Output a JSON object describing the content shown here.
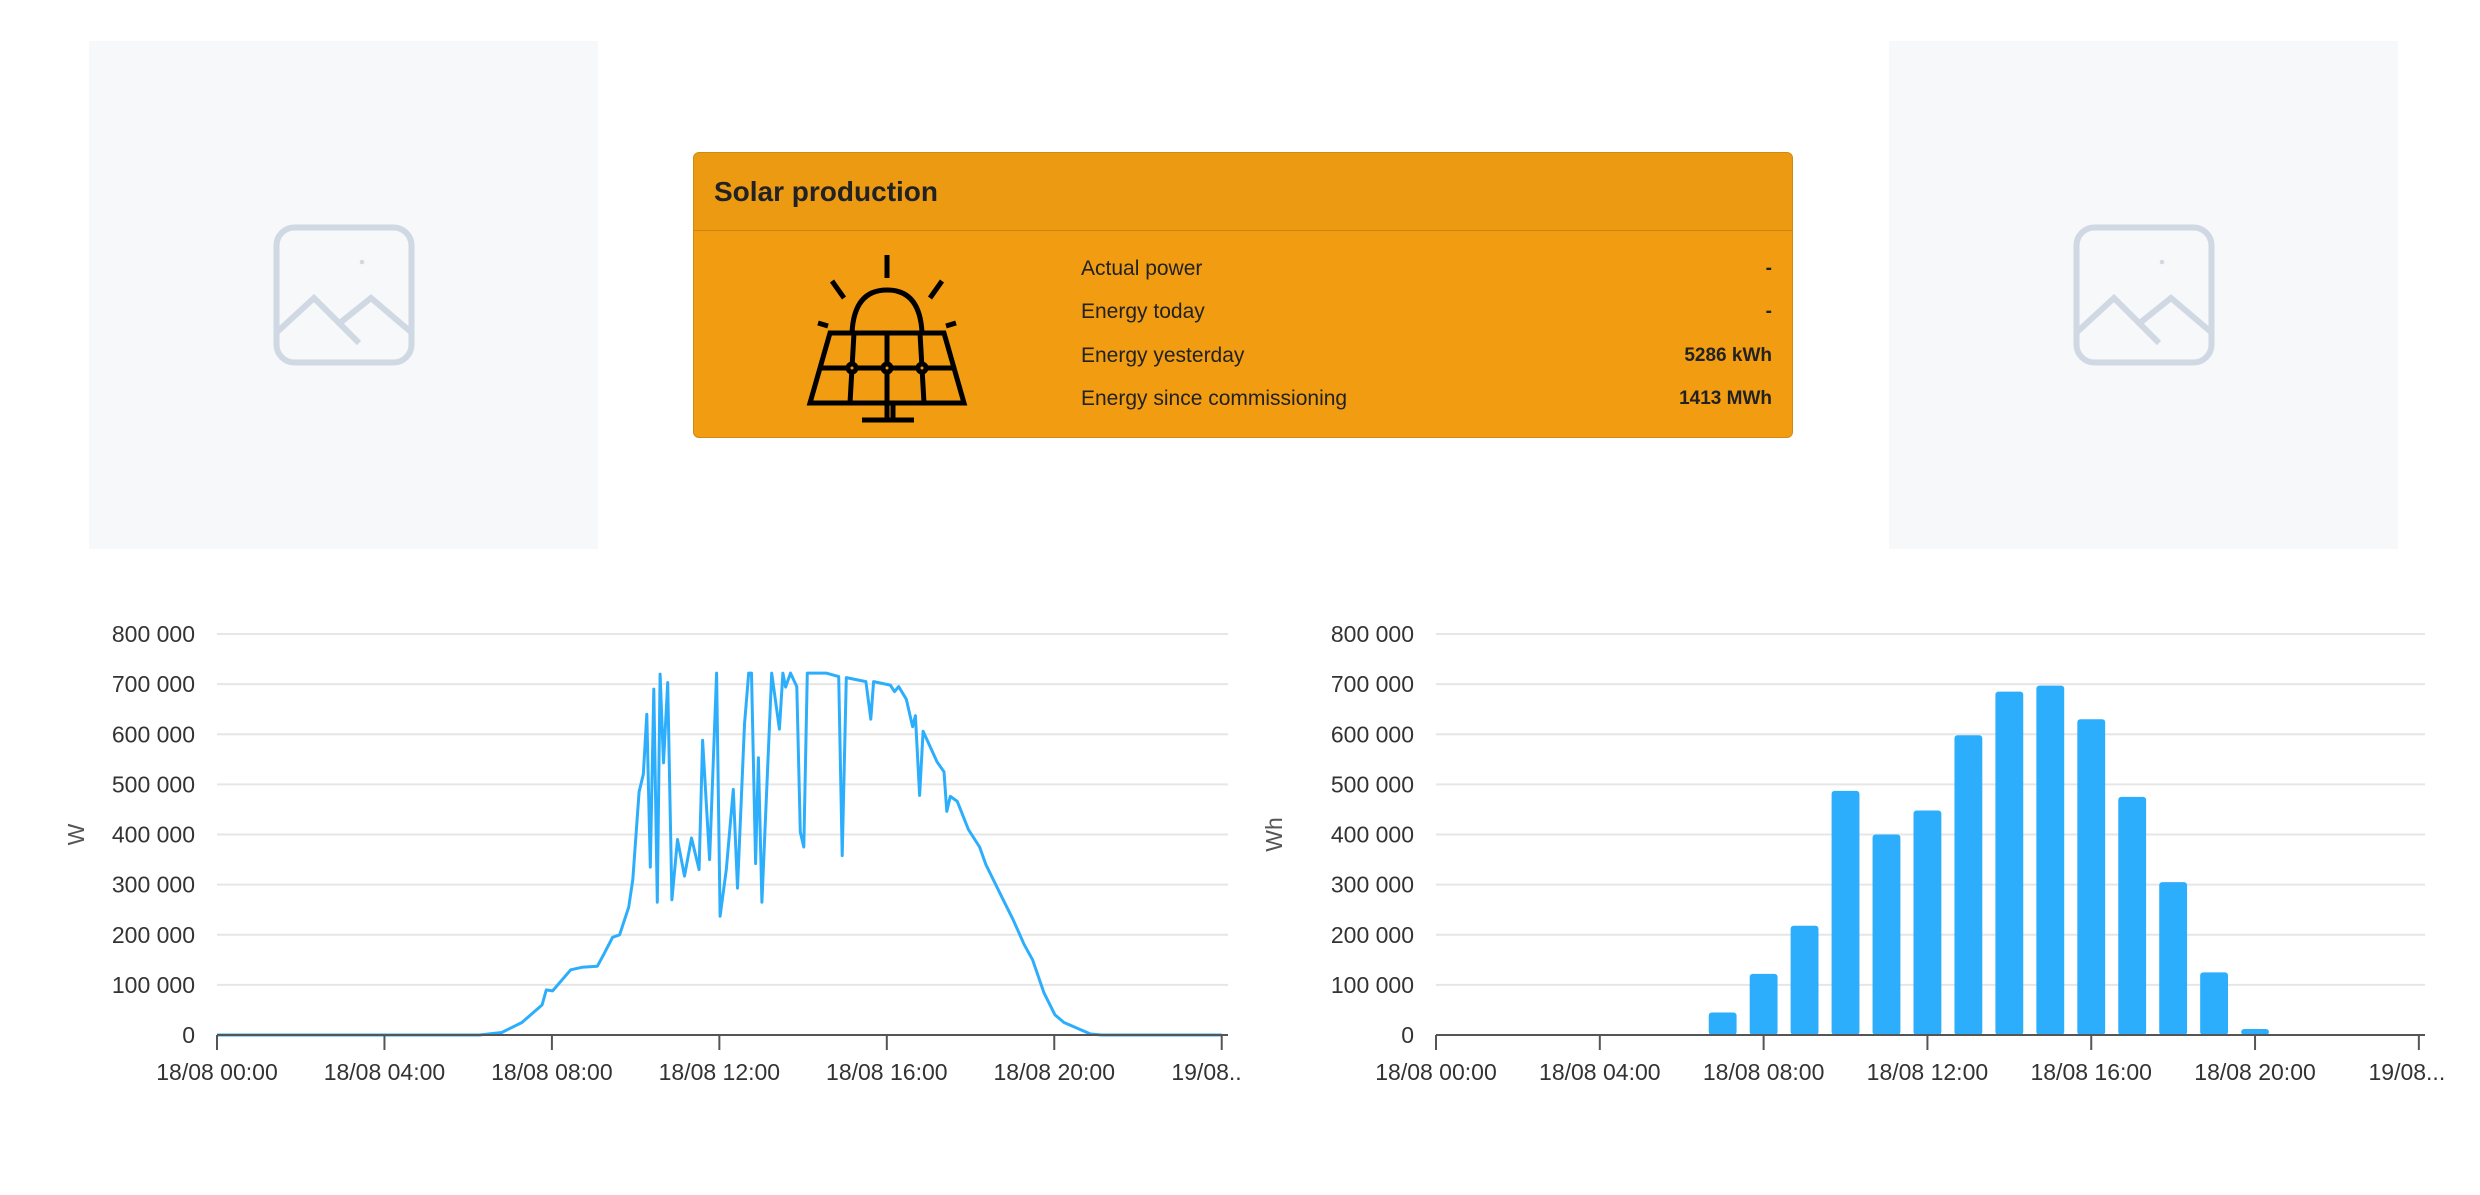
{
  "placeholders": [
    {
      "icon": "image-placeholder-icon"
    },
    {
      "icon": "image-placeholder-icon"
    }
  ],
  "card": {
    "title": "Solar production",
    "icon": "solar-panel-icon",
    "background": "#f29c11",
    "rows": [
      {
        "label": "Actual power",
        "value": "-"
      },
      {
        "label": "Energy today",
        "value": "-"
      },
      {
        "label": "Energy yesterday",
        "value": "5286 kWh"
      },
      {
        "label": "Energy since commissioning",
        "value": "1413 MWh"
      }
    ]
  },
  "chart_data": [
    {
      "type": "line",
      "ylabel": "W",
      "color": "#2daefd",
      "grid": true,
      "ylim": [
        0,
        800000
      ],
      "yticks": [
        "0",
        "100 000",
        "200 000",
        "300 000",
        "400 000",
        "500 000",
        "600 000",
        "700 000",
        "800 000"
      ],
      "xticks": [
        "18/08 00:00",
        "18/08 04:00",
        "18/08 08:00",
        "18/08 12:00",
        "18/08 16:00",
        "18/08 20:00",
        "19/08..."
      ],
      "points": [
        [
          "00:00",
          0
        ],
        [
          "06:16",
          0
        ],
        [
          "06:48",
          5000
        ],
        [
          "07:17",
          25000
        ],
        [
          "07:46",
          60000
        ],
        [
          "07:52",
          90000
        ],
        [
          "08:01",
          88000
        ],
        [
          "08:27",
          130000
        ],
        [
          "08:43",
          135000
        ],
        [
          "09:05",
          137000
        ],
        [
          "09:14",
          160000
        ],
        [
          "09:27",
          195000
        ],
        [
          "09:37",
          200000
        ],
        [
          "09:50",
          255000
        ],
        [
          "09:56",
          310000
        ],
        [
          "10:05",
          485000
        ],
        [
          "10:11",
          520000
        ],
        [
          "10:16",
          640000
        ],
        [
          "10:21",
          335000
        ],
        [
          "10:26",
          690000
        ],
        [
          "10:31",
          265000
        ],
        [
          "10:35",
          720000
        ],
        [
          "10:40",
          543000
        ],
        [
          "10:46",
          703000
        ],
        [
          "10:52",
          270000
        ],
        [
          "11:00",
          390000
        ],
        [
          "11:10",
          317000
        ],
        [
          "11:20",
          393000
        ],
        [
          "11:31",
          330000
        ],
        [
          "11:36",
          588000
        ],
        [
          "11:46",
          350000
        ],
        [
          "11:56",
          722000
        ],
        [
          "12:01",
          237000
        ],
        [
          "12:10",
          330000
        ],
        [
          "12:20",
          490000
        ],
        [
          "12:26",
          293000
        ],
        [
          "12:36",
          620000
        ],
        [
          "12:42",
          722000
        ],
        [
          "12:46",
          722000
        ],
        [
          "12:52",
          342000
        ],
        [
          "12:56",
          553000
        ],
        [
          "13:01",
          265000
        ],
        [
          "13:15",
          722000
        ],
        [
          "13:26",
          610000
        ],
        [
          "13:31",
          722000
        ],
        [
          "13:35",
          694000
        ],
        [
          "13:42",
          722000
        ],
        [
          "13:51",
          695000
        ],
        [
          "13:56",
          405000
        ],
        [
          "14:01",
          375000
        ],
        [
          "14:06",
          722000
        ],
        [
          "14:33",
          722000
        ],
        [
          "14:51",
          715000
        ],
        [
          "14:56",
          358000
        ],
        [
          "15:02",
          713000
        ],
        [
          "15:30",
          705000
        ],
        [
          "15:37",
          630000
        ],
        [
          "15:41",
          705000
        ],
        [
          "16:05",
          698000
        ],
        [
          "16:11",
          685000
        ],
        [
          "16:17",
          695000
        ],
        [
          "16:28",
          670000
        ],
        [
          "16:37",
          615000
        ],
        [
          "16:41",
          637000
        ],
        [
          "16:47",
          478000
        ],
        [
          "16:52",
          606000
        ],
        [
          "17:12",
          545000
        ],
        [
          "17:22",
          525000
        ],
        [
          "17:26",
          446000
        ],
        [
          "17:31",
          476000
        ],
        [
          "17:41",
          466000
        ],
        [
          "17:57",
          410000
        ],
        [
          "18:13",
          375000
        ],
        [
          "18:22",
          340000
        ],
        [
          "18:45",
          275000
        ],
        [
          "19:01",
          230000
        ],
        [
          "19:17",
          180000
        ],
        [
          "19:29",
          150000
        ],
        [
          "19:45",
          85000
        ],
        [
          "20:01",
          40000
        ],
        [
          "20:14",
          25000
        ],
        [
          "20:52",
          2000
        ],
        [
          "21:08",
          0
        ],
        [
          "24:00",
          0
        ]
      ]
    },
    {
      "type": "bar",
      "ylabel": "Wh",
      "color": "#2daefd",
      "grid": true,
      "ylim": [
        0,
        800000
      ],
      "yticks": [
        "0",
        "100 000",
        "200 000",
        "300 000",
        "400 000",
        "500 000",
        "600 000",
        "700 000",
        "800 000"
      ],
      "xticks": [
        "18/08 00:00",
        "18/08 04:00",
        "18/08 08:00",
        "18/08 12:00",
        "18/08 16:00",
        "18/08 20:00",
        "19/08..."
      ],
      "categories": [
        "00:00",
        "01:00",
        "02:00",
        "03:00",
        "04:00",
        "05:00",
        "06:00",
        "07:00",
        "08:00",
        "09:00",
        "10:00",
        "11:00",
        "12:00",
        "13:00",
        "14:00",
        "15:00",
        "16:00",
        "17:00",
        "18:00",
        "19:00",
        "20:00",
        "21:00",
        "22:00",
        "23:00"
      ],
      "values": [
        0,
        0,
        0,
        0,
        0,
        0,
        1000,
        45000,
        122000,
        218000,
        487000,
        400000,
        448000,
        598000,
        685000,
        697000,
        630000,
        475000,
        305000,
        125000,
        12000,
        0,
        0,
        0
      ]
    }
  ]
}
